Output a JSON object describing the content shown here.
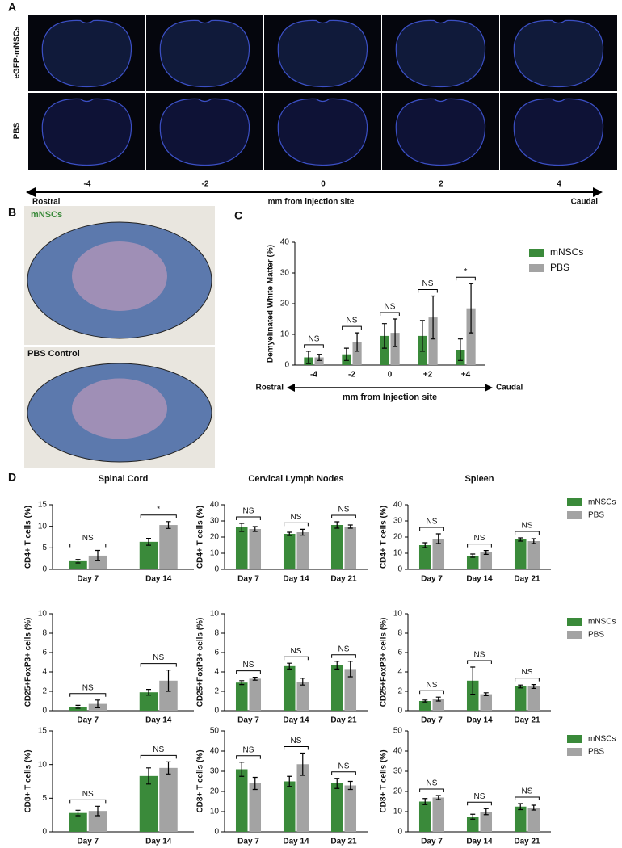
{
  "panel_a": {
    "label": "A",
    "rows": [
      "eGFP-mNSCs",
      "PBS"
    ],
    "positions": [
      "-4",
      "-2",
      "0",
      "2",
      "4"
    ],
    "left": "Rostral",
    "axis": "mm from injection site",
    "right": "Caudal"
  },
  "panel_b": {
    "label": "B",
    "images": [
      "mNSCs",
      "PBS Control"
    ]
  },
  "panel_c_label": "C",
  "panel_d_label": "D",
  "chart_data": [
    {
      "type": "bar",
      "ylabel": "Demyelinated White Matter (%)",
      "xlabel": "mm from Injection site",
      "x_left_label": "Rostral",
      "x_right_label": "Caudal",
      "categories": [
        "-4",
        "-2",
        "0",
        "+2",
        "+4"
      ],
      "ylim": [
        0,
        40
      ],
      "yticks": [
        0,
        10,
        20,
        30,
        40
      ],
      "legend": "right",
      "series": [
        {
          "name": "mNSCs",
          "color": "#3a8a3a",
          "values": [
            2.5,
            3.5,
            9.5,
            9.5,
            5
          ],
          "errors": [
            2,
            2,
            4,
            5,
            3.5
          ]
        },
        {
          "name": "PBS",
          "color": "#a3a3a3",
          "values": [
            2.5,
            7.5,
            10.5,
            15.5,
            18.5
          ],
          "errors": [
            1,
            3,
            4.5,
            7,
            8
          ]
        }
      ],
      "significance": [
        "NS",
        "NS",
        "NS",
        "NS",
        "*"
      ]
    },
    {
      "type": "bar",
      "title": "Spinal Cord",
      "ylabel": "CD4+ T cells (%)",
      "categories": [
        "Day 7",
        "Day 14"
      ],
      "ylim": [
        0,
        15
      ],
      "yticks": [
        0,
        5,
        10,
        15
      ],
      "series": [
        {
          "color": "#3a8a3a",
          "values": [
            1.9,
            6.4
          ],
          "errors": [
            0.4,
            0.8
          ]
        },
        {
          "color": "#a3a3a3",
          "values": [
            3.2,
            10.3
          ],
          "errors": [
            1.2,
            0.8
          ]
        }
      ],
      "significance": [
        "NS",
        "*"
      ]
    },
    {
      "type": "bar",
      "title": "Cervical Lymph Nodes",
      "ylabel": "CD4+ T cells (%)",
      "categories": [
        "Day 7",
        "Day 14",
        "Day 21"
      ],
      "ylim": [
        0,
        40
      ],
      "yticks": [
        0,
        10,
        20,
        30,
        40
      ],
      "series": [
        {
          "color": "#3a8a3a",
          "values": [
            26,
            22,
            27.5
          ],
          "errors": [
            2.5,
            1,
            2
          ]
        },
        {
          "color": "#a3a3a3",
          "values": [
            25,
            23,
            26.5
          ],
          "errors": [
            1.5,
            1.8,
            1
          ]
        }
      ],
      "significance": [
        "NS",
        "NS",
        "NS"
      ]
    },
    {
      "type": "bar",
      "title": "Spleen",
      "ylabel": "CD4+ T cells (%)",
      "categories": [
        "Day 7",
        "Day 14",
        "Day 21"
      ],
      "ylim": [
        0,
        40
      ],
      "yticks": [
        0,
        10,
        20,
        30,
        40
      ],
      "legend": "right",
      "series": [
        {
          "name": "mNSCs",
          "color": "#3a8a3a",
          "values": [
            15,
            8.5,
            18.5
          ],
          "errors": [
            1.5,
            1,
            1
          ]
        },
        {
          "name": "PBS",
          "color": "#a3a3a3",
          "values": [
            19,
            10.5,
            17.5
          ],
          "errors": [
            3,
            1.2,
            1.5
          ]
        }
      ],
      "significance": [
        "NS",
        "NS",
        "NS"
      ]
    },
    {
      "type": "bar",
      "ylabel": "CD25+FoxP3+ cells (%)",
      "categories": [
        "Day 7",
        "Day 14"
      ],
      "ylim": [
        0,
        10
      ],
      "yticks": [
        0,
        2,
        4,
        6,
        8,
        10
      ],
      "series": [
        {
          "color": "#3a8a3a",
          "values": [
            0.4,
            1.9
          ],
          "errors": [
            0.15,
            0.3
          ]
        },
        {
          "color": "#a3a3a3",
          "values": [
            0.7,
            3.1
          ],
          "errors": [
            0.4,
            1.1
          ]
        }
      ],
      "significance": [
        "NS",
        "NS"
      ]
    },
    {
      "type": "bar",
      "ylabel": "CD25+FoxP3+ cells (%)",
      "categories": [
        "Day 7",
        "Day 14",
        "Day 21"
      ],
      "ylim": [
        0,
        10
      ],
      "yticks": [
        0,
        2,
        4,
        6,
        8,
        10
      ],
      "series": [
        {
          "color": "#3a8a3a",
          "values": [
            2.9,
            4.6,
            4.7
          ],
          "errors": [
            0.2,
            0.3,
            0.4
          ]
        },
        {
          "color": "#a3a3a3",
          "values": [
            3.3,
            3,
            4.3
          ],
          "errors": [
            0.15,
            0.35,
            0.8
          ]
        }
      ],
      "significance": [
        "NS",
        "NS",
        "NS"
      ]
    },
    {
      "type": "bar",
      "ylabel": "CD25+FoxP3+ cells (%)",
      "categories": [
        "Day 7",
        "Day 14",
        "Day 21"
      ],
      "ylim": [
        0,
        10
      ],
      "yticks": [
        0,
        2,
        4,
        6,
        8,
        10
      ],
      "legend": "right",
      "series": [
        {
          "name": "mNSCs",
          "color": "#3a8a3a",
          "values": [
            1,
            3.1,
            2.5
          ],
          "errors": [
            0.1,
            1.4,
            0.15
          ]
        },
        {
          "name": "PBS",
          "color": "#a3a3a3",
          "values": [
            1.2,
            1.7,
            2.5
          ],
          "errors": [
            0.2,
            0.15,
            0.2
          ]
        }
      ],
      "significance": [
        "NS",
        "NS",
        "NS"
      ]
    },
    {
      "type": "bar",
      "ylabel": "CD8+ T cells (%)",
      "categories": [
        "Day 7",
        "Day 14"
      ],
      "ylim": [
        0,
        15
      ],
      "yticks": [
        0,
        5,
        10,
        15
      ],
      "series": [
        {
          "color": "#3a8a3a",
          "values": [
            2.8,
            8.3
          ],
          "errors": [
            0.4,
            1.2
          ]
        },
        {
          "color": "#a3a3a3",
          "values": [
            3.1,
            9.5
          ],
          "errors": [
            0.7,
            0.9
          ]
        }
      ],
      "significance": [
        "NS",
        "NS"
      ]
    },
    {
      "type": "bar",
      "ylabel": "CD8+ T cells (%)",
      "categories": [
        "Day 7",
        "Day 14",
        "Day 21"
      ],
      "ylim": [
        0,
        50
      ],
      "yticks": [
        0,
        10,
        20,
        30,
        40,
        50
      ],
      "series": [
        {
          "color": "#3a8a3a",
          "values": [
            31,
            25,
            24
          ],
          "errors": [
            3.5,
            2.5,
            2.5
          ]
        },
        {
          "color": "#a3a3a3",
          "values": [
            24,
            33.5,
            23
          ],
          "errors": [
            3,
            5.5,
            2
          ]
        }
      ],
      "significance": [
        "NS",
        "NS",
        "NS"
      ]
    },
    {
      "type": "bar",
      "ylabel": "CD8+ T cells (%)",
      "categories": [
        "Day 7",
        "Day 14",
        "Day 21"
      ],
      "ylim": [
        0,
        50
      ],
      "yticks": [
        0,
        10,
        20,
        30,
        40,
        50
      ],
      "legend": "right",
      "series": [
        {
          "name": "mNSCs",
          "color": "#3a8a3a",
          "values": [
            15,
            7.5,
            12.5
          ],
          "errors": [
            1.5,
            1.2,
            1.5
          ]
        },
        {
          "name": "PBS",
          "color": "#a3a3a3",
          "values": [
            17,
            10,
            12
          ],
          "errors": [
            1,
            1.5,
            1.2
          ]
        }
      ],
      "significance": [
        "NS",
        "NS",
        "NS"
      ]
    }
  ]
}
